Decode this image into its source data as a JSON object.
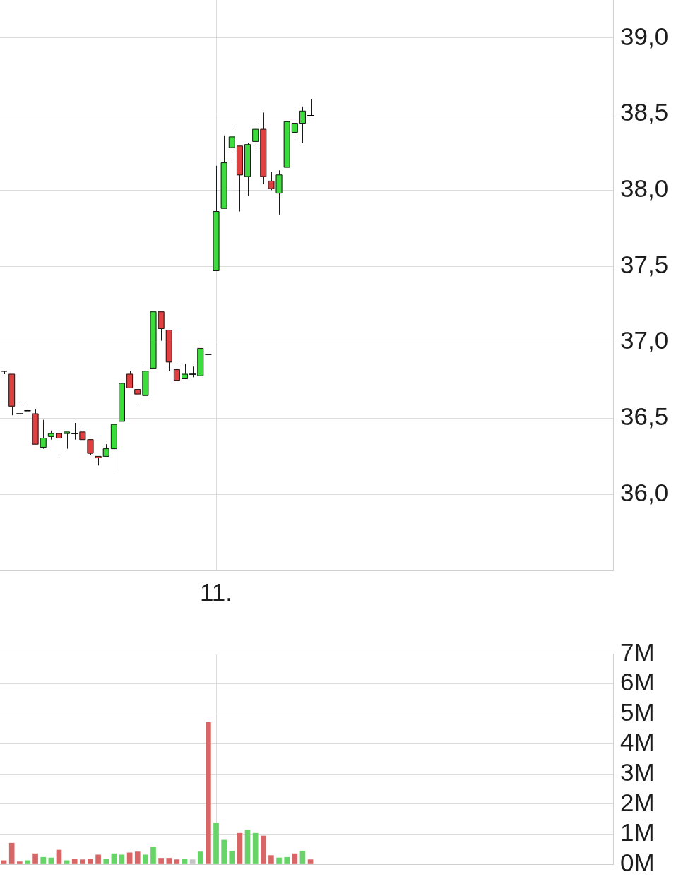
{
  "chart_data": [
    {
      "type": "candlestick",
      "categories": [
        null,
        null,
        null,
        null,
        null,
        null,
        null,
        null,
        null,
        null,
        null,
        null,
        null,
        null,
        null,
        null,
        null,
        null,
        null,
        null,
        null,
        null,
        null,
        null,
        null,
        null,
        null,
        "11.",
        null,
        null,
        null,
        null,
        null,
        null,
        null,
        null,
        null,
        null,
        null,
        null,
        null,
        null,
        null,
        null,
        null,
        null,
        null,
        null,
        null,
        null,
        null,
        null,
        null,
        null,
        null,
        null,
        null,
        null,
        null,
        null,
        null,
        null,
        null,
        null,
        null,
        null,
        null,
        null,
        null,
        null,
        null,
        null,
        null,
        null,
        null,
        null,
        null,
        null
      ],
      "ohlc": [
        [
          36.81,
          36.81,
          36.79,
          36.81
        ],
        [
          36.79,
          36.79,
          36.52,
          36.58
        ],
        [
          36.53,
          36.58,
          36.52,
          36.53
        ],
        [
          36.55,
          36.61,
          36.55,
          36.55
        ],
        [
          36.53,
          36.56,
          36.33,
          36.33
        ],
        [
          36.31,
          36.49,
          36.3,
          36.37
        ],
        [
          36.38,
          36.42,
          36.36,
          36.4
        ],
        [
          36.4,
          36.42,
          36.26,
          36.37
        ],
        [
          36.4,
          36.41,
          36.3,
          36.41
        ],
        [
          36.4,
          36.47,
          36.36,
          36.4
        ],
        [
          36.41,
          36.46,
          36.36,
          36.36
        ],
        [
          36.36,
          36.36,
          36.26,
          36.27
        ],
        [
          36.25,
          36.25,
          36.19,
          36.24
        ],
        [
          36.25,
          36.33,
          36.25,
          36.3
        ],
        [
          36.3,
          36.46,
          36.16,
          36.46
        ],
        [
          36.48,
          36.73,
          36.48,
          36.73
        ],
        [
          36.79,
          36.81,
          36.7,
          36.7
        ],
        [
          36.69,
          36.72,
          36.58,
          36.66
        ],
        [
          36.65,
          36.87,
          36.65,
          36.81
        ],
        [
          36.83,
          37.2,
          36.83,
          37.2
        ],
        [
          37.2,
          37.2,
          37.01,
          37.09
        ],
        [
          37.08,
          37.08,
          36.81,
          36.87
        ],
        [
          36.82,
          36.85,
          36.74,
          36.75
        ],
        [
          36.76,
          36.86,
          36.76,
          36.79
        ],
        [
          36.79,
          36.84,
          36.77,
          36.79
        ],
        [
          36.78,
          37.01,
          36.77,
          36.96
        ],
        [
          36.92,
          36.92,
          36.92,
          36.92
        ],
        [
          37.47,
          38.16,
          37.47,
          37.86
        ],
        [
          37.88,
          38.36,
          37.88,
          38.18
        ],
        [
          38.28,
          38.4,
          38.19,
          38.35
        ],
        [
          38.29,
          38.29,
          37.86,
          38.1
        ],
        [
          38.09,
          38.31,
          37.96,
          38.3
        ],
        [
          38.32,
          38.46,
          38.27,
          38.4
        ],
        [
          38.4,
          38.51,
          38.04,
          38.09
        ],
        [
          38.06,
          38.12,
          38.0,
          38.01
        ],
        [
          37.98,
          38.13,
          37.84,
          38.1
        ],
        [
          38.15,
          38.45,
          38.15,
          38.45
        ],
        [
          38.38,
          38.52,
          38.35,
          38.44
        ],
        [
          38.44,
          38.55,
          38.31,
          38.52
        ],
        [
          38.49,
          38.6,
          38.49,
          38.49
        ],
        null,
        null,
        null,
        null,
        null,
        null,
        null,
        null,
        null,
        null,
        null,
        null,
        null,
        null,
        null,
        null,
        null,
        null,
        null,
        null,
        null,
        null,
        null,
        null,
        null,
        null,
        null,
        null,
        null,
        null,
        null,
        null,
        null,
        null,
        null,
        null,
        null,
        null
      ],
      "colors": [
        "#000000",
        "#e04040",
        "#000000",
        "#000000",
        "#e04040",
        "#3ddc3d",
        "#3ddc3d",
        "#e04040",
        "#3ddc3d",
        "#000000",
        "#e04040",
        "#e04040",
        "#e04040",
        "#3ddc3d",
        "#3ddc3d",
        "#3ddc3d",
        "#e04040",
        "#e04040",
        "#3ddc3d",
        "#3ddc3d",
        "#e04040",
        "#e04040",
        "#e04040",
        "#3ddc3d",
        "#000000",
        "#3ddc3d",
        "#000000",
        "#3ddc3d",
        "#3ddc3d",
        "#3ddc3d",
        "#e04040",
        "#3ddc3d",
        "#3ddc3d",
        "#e04040",
        "#e04040",
        "#3ddc3d",
        "#3ddc3d",
        "#3ddc3d",
        "#3ddc3d",
        "#000000",
        null,
        null,
        null,
        null,
        null,
        null,
        null,
        null,
        null,
        null,
        null,
        null,
        null,
        null,
        null,
        null,
        null,
        null,
        null,
        null,
        null,
        null,
        null,
        null,
        null,
        null,
        null,
        null,
        null,
        null,
        null,
        null,
        null,
        null,
        null,
        null,
        null,
        null
      ],
      "ylim": [
        35.5,
        39.25
      ],
      "yticks": [
        {
          "value": 36,
          "label": "36,0"
        },
        {
          "value": 36.5,
          "label": "36,5"
        },
        {
          "value": 37,
          "label": "37,0"
        },
        {
          "value": 37.5,
          "label": "37,5"
        },
        {
          "value": 38,
          "label": "38,0"
        },
        {
          "value": 38.5,
          "label": "38,5"
        },
        {
          "value": 39,
          "label": "39,0"
        }
      ],
      "grid": true
    },
    {
      "type": "bar",
      "categories": [
        null,
        null,
        null,
        null,
        null,
        null,
        null,
        null,
        null,
        null,
        null,
        null,
        null,
        null,
        null,
        null,
        null,
        null,
        null,
        null,
        null,
        null,
        null,
        null,
        null,
        null,
        null,
        null,
        null,
        null,
        null,
        null,
        null,
        null,
        null,
        null,
        null,
        null,
        null,
        null,
        null,
        null,
        null,
        null,
        null,
        null,
        null,
        null,
        null,
        null,
        null,
        null,
        null,
        null,
        null,
        null,
        null,
        null,
        null,
        null,
        null,
        null,
        null,
        null,
        null,
        null,
        null,
        null,
        null,
        null,
        null,
        null,
        null,
        null,
        null,
        null,
        null,
        null
      ],
      "values": [
        0.12,
        0.7,
        0.08,
        0.12,
        0.35,
        0.23,
        0.21,
        0.47,
        0.12,
        0.18,
        0.15,
        0.18,
        0.31,
        0.18,
        0.35,
        0.31,
        0.38,
        0.41,
        0.31,
        0.58,
        0.2,
        0.2,
        0.15,
        0.18,
        0.15,
        0.41,
        4.72,
        1.37,
        0.8,
        0.44,
        1.03,
        1.14,
        1.03,
        0.94,
        0.29,
        0.21,
        0.23,
        0.35,
        0.44,
        0.15,
        null,
        null,
        null,
        null,
        null,
        null,
        null,
        null,
        null,
        null,
        null,
        null,
        null,
        null,
        null,
        null,
        null,
        null,
        null,
        null,
        null,
        null,
        null,
        null,
        null,
        null,
        null,
        null,
        null,
        null,
        null,
        null,
        null,
        null,
        null,
        null,
        null,
        null
      ],
      "colors": [
        "#d96666",
        "#d96666",
        "#d96666",
        "#66d466",
        "#d96666",
        "#66d466",
        "#66d466",
        "#d96666",
        "#66d466",
        "#d96666",
        "#d96666",
        "#d96666",
        "#d96666",
        "#66d466",
        "#66d466",
        "#66d466",
        "#d96666",
        "#d96666",
        "#66d466",
        "#66d466",
        "#d96666",
        "#d96666",
        "#d96666",
        "#66d466",
        "#c4c4c4",
        "#66d466",
        "#d96666",
        "#66d466",
        "#66d466",
        "#66d466",
        "#d96666",
        "#66d466",
        "#66d466",
        "#d96666",
        "#d96666",
        "#66d466",
        "#66d466",
        "#d96666",
        "#66d466",
        "#d96666",
        null,
        null,
        null,
        null,
        null,
        null,
        null,
        null,
        null,
        null,
        null,
        null,
        null,
        null,
        null,
        null,
        null,
        null,
        null,
        null,
        null,
        null,
        null,
        null,
        null,
        null,
        null,
        null,
        null,
        null,
        null,
        null,
        null,
        null,
        null,
        null,
        null,
        null
      ],
      "ylim": [
        0,
        7
      ],
      "yticks": [
        {
          "value": 0,
          "label": "0M"
        },
        {
          "value": 1,
          "label": "1M"
        },
        {
          "value": 2,
          "label": "2M"
        },
        {
          "value": 3,
          "label": "3M"
        },
        {
          "value": 4,
          "label": "4M"
        },
        {
          "value": 5,
          "label": "5M"
        },
        {
          "value": 6,
          "label": "6M"
        },
        {
          "value": 7,
          "label": "7M"
        }
      ],
      "grid": true
    }
  ]
}
